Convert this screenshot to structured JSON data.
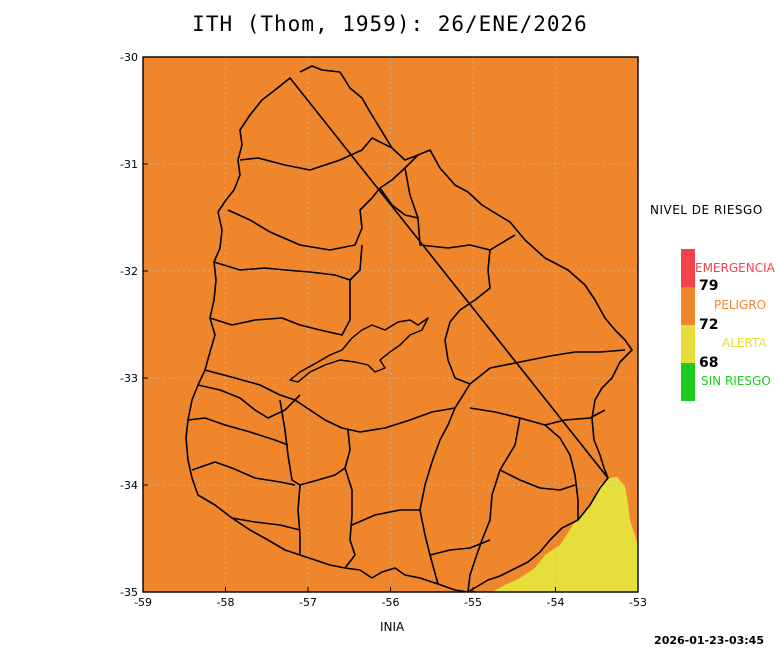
{
  "title": "ITH (Thom, 1959): 26/ENE/2026",
  "credit": "INIA",
  "timestamp": "2026-01-23-03:45",
  "axes": {
    "x_ticks": [
      "-59",
      "-58",
      "-57",
      "-56",
      "-55",
      "-54",
      "-53"
    ],
    "y_ticks": [
      "-30",
      "-31",
      "-32",
      "-33",
      "-34",
      "-35"
    ],
    "x_range": [
      -59,
      -53
    ],
    "y_range": [
      -35,
      -30
    ]
  },
  "legend": {
    "title": "NIVEL DE RIESGO",
    "levels": [
      {
        "label": "EMERGENCIA",
        "color": "#f5424a"
      },
      {
        "label": "PELIGRO",
        "color": "#f0862c"
      },
      {
        "label": "ALERTA",
        "color": "#e6de3a"
      },
      {
        "label": "SIN RIESGO",
        "color": "#1ecc1e"
      }
    ],
    "thresholds": [
      "79",
      "72",
      "68"
    ]
  },
  "colors": {
    "field_background": "#f0862c",
    "alert_zone": "#e6de3a",
    "boundaries": "#000000",
    "gridlines": "#b8b8b8"
  }
}
